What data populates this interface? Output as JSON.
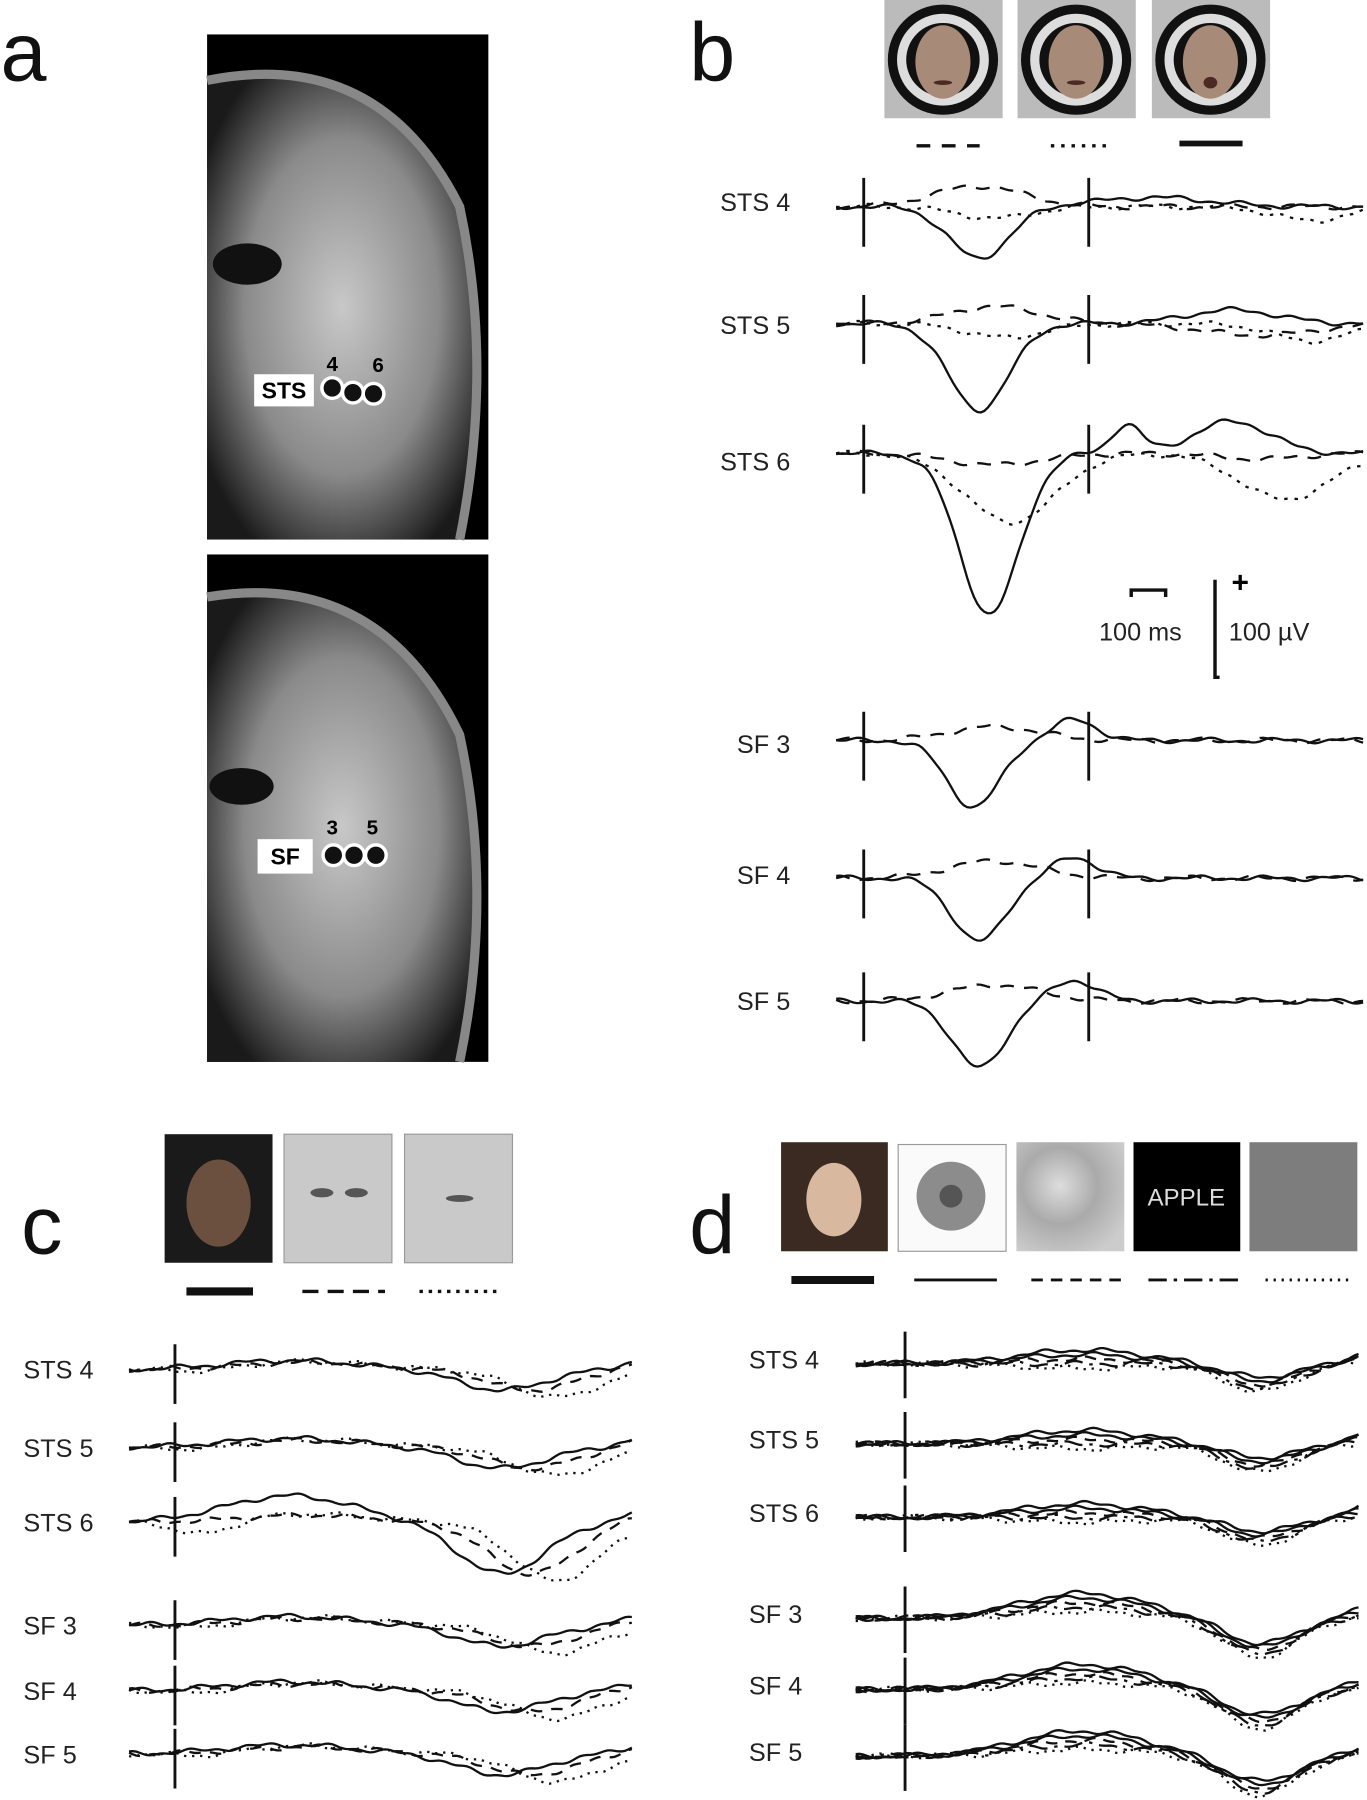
{
  "panel_a": {
    "label": "a",
    "top_image": {
      "region_label": "STS",
      "contact_labels": [
        "4",
        "6"
      ]
    },
    "bottom_image": {
      "region_label": "SF",
      "contact_labels": [
        "3",
        "5"
      ]
    }
  },
  "panel_b": {
    "label": "b",
    "channels": [
      "STS 4",
      "STS 5",
      "STS 6",
      "SF 3",
      "SF 4",
      "SF 5"
    ],
    "scale_bar": {
      "plus": "+",
      "time": "100 ms",
      "voltage": "100 µV"
    }
  },
  "panel_c": {
    "label": "c",
    "channels": [
      "STS 4",
      "STS 5",
      "STS 6",
      "SF 3",
      "SF 4",
      "SF 5"
    ]
  },
  "panel_d": {
    "label": "d",
    "stimulus_text": "APPLE",
    "channels": [
      "STS 4",
      "STS 5",
      "STS 6",
      "SF 3",
      "SF 4",
      "SF 5"
    ]
  }
}
